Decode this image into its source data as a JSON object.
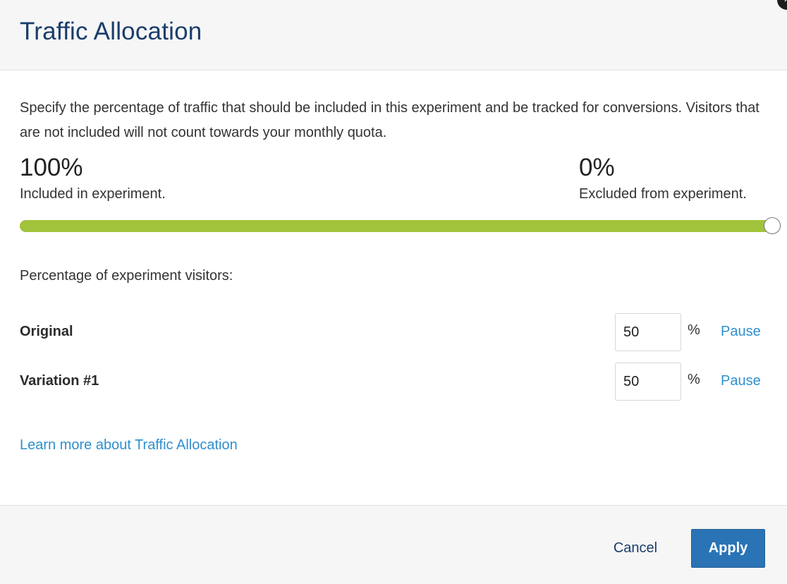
{
  "header": {
    "title": "Traffic Allocation",
    "close_glyph": "×"
  },
  "description": "Specify the percentage of traffic that should be included in this experiment and be tracked for conversions. Visitors that are not included will not count towards your monthly quota.",
  "allocation": {
    "included_value": "100%",
    "included_label": "Included in experiment.",
    "excluded_value": "0%",
    "excluded_label": "Excluded from experiment.",
    "slider_percent": 100,
    "slider_color": "#a1c33b"
  },
  "variations_heading": "Percentage of experiment visitors:",
  "variations": [
    {
      "name": "Original",
      "value": "50",
      "unit": "%",
      "action": "Pause"
    },
    {
      "name": "Variation #1",
      "value": "50",
      "unit": "%",
      "action": "Pause"
    }
  ],
  "learn_more_link": "Learn more about Traffic Allocation",
  "footer": {
    "cancel_label": "Cancel",
    "apply_label": "Apply"
  },
  "colors": {
    "title": "#1a3d6b",
    "link": "#2e8fcf",
    "primary_button": "#2a74b6"
  }
}
